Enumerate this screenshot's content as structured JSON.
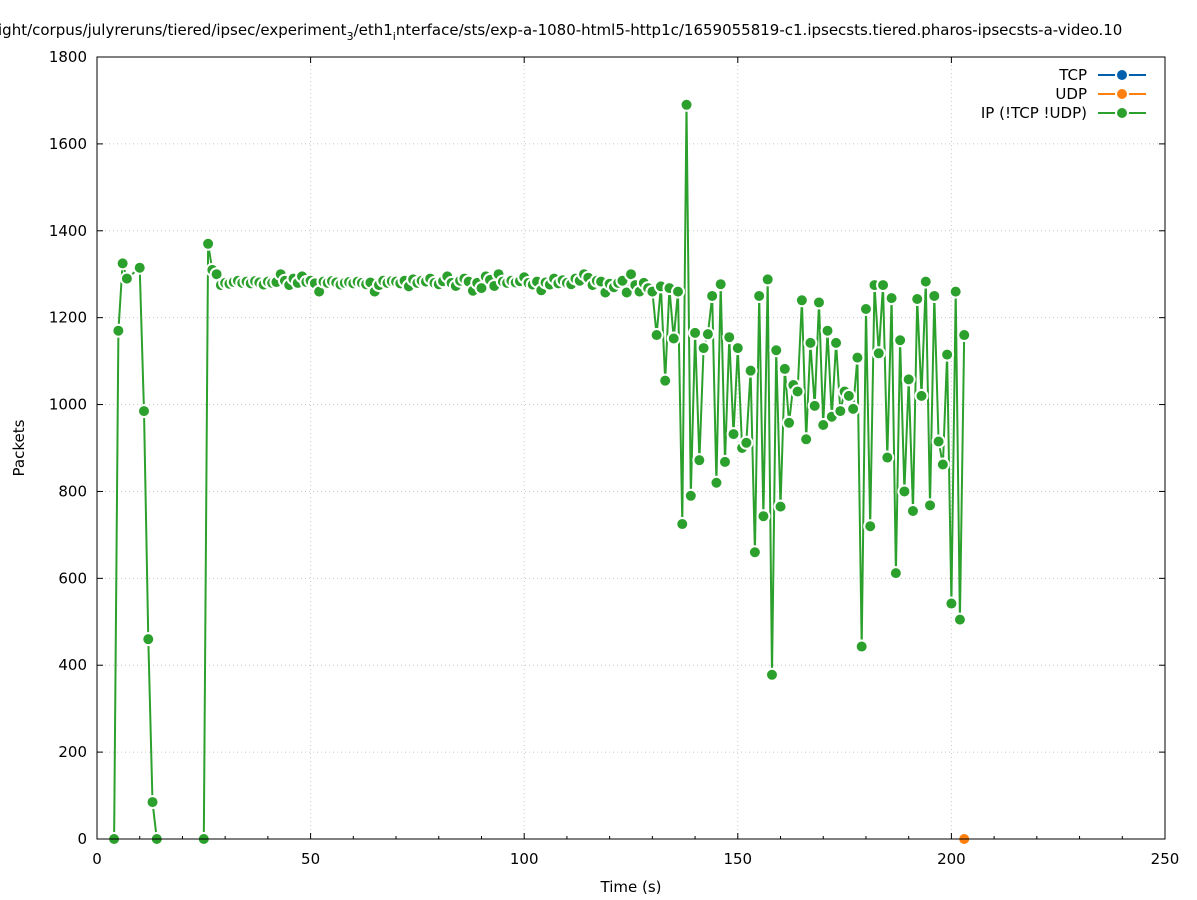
{
  "chart_data": {
    "type": "line",
    "title_parts": [
      "ight/corpus/julyreruns/tiered/ipsec/experiment",
      "3",
      "/eth1",
      "i",
      "nterface/sts/exp-a-1080-html5-http1c/1659055819-c1.ipsecsts.tiered.pharos-ipsecsts-a-video.10"
    ],
    "xlabel": "Time (s)",
    "ylabel": "Packets",
    "xlim": [
      0,
      250
    ],
    "ylim": [
      0,
      1800
    ],
    "xticks": [
      0,
      50,
      100,
      150,
      200,
      250
    ],
    "yticks": [
      0,
      200,
      400,
      600,
      800,
      1000,
      1200,
      1400,
      1600,
      1800
    ],
    "grid": true,
    "legend_position": "top-right",
    "colors": {
      "TCP": "#0060ad",
      "UDP": "#ff7f0e",
      "IP": "#2ca02c"
    },
    "series": [
      {
        "name": "TCP",
        "color": "#0060ad",
        "x": [],
        "y": []
      },
      {
        "name": "UDP",
        "color": "#ff7f0e",
        "x": [
          203
        ],
        "y": [
          0
        ]
      },
      {
        "name": "IP (!TCP  !UDP)",
        "color": "#2ca02c",
        "x": [
          4,
          5,
          6,
          7,
          10,
          11,
          12,
          13,
          14,
          25,
          26,
          27,
          28,
          29,
          30,
          31,
          32,
          33,
          34,
          35,
          36,
          37,
          38,
          39,
          40,
          41,
          42,
          43,
          44,
          45,
          46,
          47,
          48,
          49,
          50,
          51,
          52,
          53,
          54,
          55,
          56,
          57,
          58,
          59,
          60,
          61,
          62,
          63,
          64,
          65,
          66,
          67,
          68,
          69,
          70,
          71,
          72,
          73,
          74,
          75,
          76,
          77,
          78,
          79,
          80,
          81,
          82,
          83,
          84,
          85,
          86,
          87,
          88,
          89,
          90,
          91,
          92,
          93,
          94,
          95,
          96,
          97,
          98,
          99,
          100,
          101,
          102,
          103,
          104,
          105,
          106,
          107,
          108,
          109,
          110,
          111,
          112,
          113,
          114,
          115,
          116,
          117,
          118,
          119,
          120,
          121,
          122,
          123,
          124,
          125,
          126,
          127,
          128,
          129,
          130,
          131,
          132,
          133,
          134,
          135,
          136,
          137,
          138,
          139,
          140,
          141,
          142,
          143,
          144,
          145,
          146,
          147,
          148,
          149,
          150,
          151,
          152,
          153,
          154,
          155,
          156,
          157,
          158,
          159,
          160,
          161,
          162,
          163,
          164,
          165,
          166,
          167,
          168,
          169,
          170,
          171,
          172,
          173,
          174,
          175,
          176,
          177,
          178,
          179,
          180,
          181,
          182,
          183,
          184,
          185,
          186,
          187,
          188,
          189,
          190,
          191,
          192,
          193,
          194,
          195,
          196,
          197,
          198,
          199,
          200,
          201,
          202,
          203
        ],
        "y": [
          0,
          1170,
          1325,
          1290,
          1315,
          985,
          460,
          85,
          0,
          0,
          1370,
          1310,
          1300,
          1275,
          1280,
          1278,
          1282,
          1285,
          1280,
          1283,
          1279,
          1284,
          1281,
          1276,
          1283,
          1280,
          1282,
          1300,
          1285,
          1275,
          1290,
          1280,
          1295,
          1282,
          1285,
          1279,
          1260,
          1283,
          1280,
          1284,
          1281,
          1276,
          1280,
          1282,
          1279,
          1283,
          1280,
          1277,
          1281,
          1260,
          1275,
          1285,
          1280,
          1284,
          1283,
          1279,
          1285,
          1272,
          1288,
          1280,
          1285,
          1283,
          1290,
          1280,
          1277,
          1284,
          1295,
          1280,
          1273,
          1285,
          1290,
          1283,
          1262,
          1280,
          1268,
          1295,
          1287,
          1273,
          1300,
          1283,
          1280,
          1285,
          1281,
          1284,
          1293,
          1280,
          1276,
          1283,
          1263,
          1281,
          1276,
          1290,
          1279,
          1286,
          1280,
          1277,
          1290,
          1285,
          1300,
          1292,
          1275,
          1285,
          1283,
          1258,
          1278,
          1270,
          1280,
          1285,
          1258,
          1300,
          1275,
          1260,
          1280,
          1268,
          1260,
          1160,
          1272,
          1055,
          1268,
          1152,
          1260,
          725,
          1690,
          790,
          1165,
          872,
          1130,
          1162,
          1250,
          820,
          1277,
          868,
          1155,
          932,
          1130,
          900,
          912,
          1078,
          660,
          1250,
          743,
          1288,
          378,
          1125,
          765,
          1082,
          958,
          1045,
          1030,
          1240,
          920,
          1142,
          997,
          1235,
          953,
          1170,
          972,
          1142,
          985,
          1030,
          1020,
          990,
          1108,
          443,
          1220,
          720,
          1275,
          1118,
          1275,
          878,
          1245,
          612,
          1148,
          800,
          1058,
          755,
          1243,
          1020,
          1283,
          768,
          1250,
          915,
          862,
          1115,
          542,
          1260,
          505,
          1160
        ],
        "connect": [
          true,
          true,
          true,
          true,
          true,
          true,
          true,
          true,
          false,
          true,
          true,
          true,
          true,
          true,
          true,
          true,
          true,
          true,
          true,
          true,
          true,
          true,
          true,
          true,
          true,
          true,
          true,
          true,
          true,
          true,
          true,
          true,
          true,
          true,
          true,
          true,
          true,
          true,
          true,
          true,
          true,
          true,
          true,
          true,
          true,
          true,
          true,
          true,
          true,
          true,
          true,
          true,
          true,
          true,
          true,
          true,
          true,
          true,
          true,
          true,
          true,
          true,
          true,
          true,
          true,
          true,
          true,
          true,
          true,
          true,
          true,
          true,
          true,
          true,
          true,
          true,
          true,
          true,
          true,
          true,
          true,
          true,
          true,
          true,
          true,
          true,
          true,
          true,
          true,
          true,
          true,
          true,
          true,
          true,
          true,
          true,
          true,
          true,
          true,
          true,
          true,
          true,
          true,
          true,
          true,
          true,
          true,
          true,
          true,
          true,
          true,
          true,
          true,
          true,
          true,
          true,
          true,
          true,
          true,
          true,
          true,
          true,
          true,
          true,
          true,
          true,
          true,
          true,
          true,
          true,
          true,
          true,
          true,
          true,
          true,
          true,
          true,
          true,
          true,
          true,
          true,
          true,
          true,
          true,
          true,
          true,
          true,
          true,
          true,
          true,
          true,
          true,
          true,
          true,
          true,
          true,
          true,
          true,
          true,
          true,
          true,
          true,
          true,
          true,
          true,
          true,
          true,
          true,
          true,
          true,
          true,
          true,
          true,
          true,
          true,
          true,
          true,
          true,
          true,
          true,
          true,
          true,
          true,
          true,
          true,
          true,
          true
        ]
      }
    ]
  }
}
